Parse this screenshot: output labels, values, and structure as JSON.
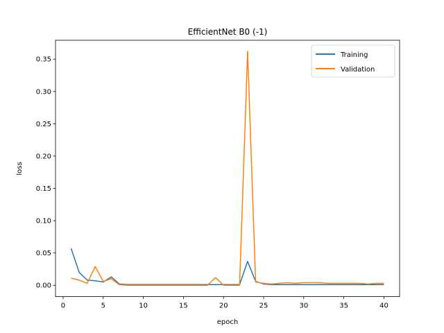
{
  "chart_data": {
    "type": "line",
    "title": "EfficientNet B0 (-1)",
    "xlabel": "epoch",
    "ylabel": "loss",
    "xlim": [
      -0.95,
      41.95
    ],
    "ylim": [
      -0.0176,
      0.3792
    ],
    "xticks": [
      0,
      5,
      10,
      15,
      20,
      25,
      30,
      35,
      40
    ],
    "yticks": [
      0.0,
      0.05,
      0.1,
      0.15,
      0.2,
      0.25,
      0.3,
      0.35
    ],
    "ytick_labels": [
      "0.00",
      "0.05",
      "0.10",
      "0.15",
      "0.20",
      "0.25",
      "0.30",
      "0.35"
    ],
    "grid": false,
    "legend_position": "top-right",
    "x": [
      1,
      2,
      3,
      4,
      5,
      6,
      7,
      8,
      9,
      10,
      11,
      12,
      13,
      14,
      15,
      16,
      17,
      18,
      19,
      20,
      21,
      22,
      23,
      24,
      25,
      26,
      27,
      28,
      29,
      30,
      31,
      32,
      33,
      34,
      35,
      36,
      37,
      38,
      39,
      40
    ],
    "series": [
      {
        "name": "Training",
        "color": "#1f77b4",
        "values": [
          0.057,
          0.02,
          0.008,
          0.007,
          0.005,
          0.013,
          0.002,
          0.001,
          0.001,
          0.001,
          0.001,
          0.001,
          0.001,
          0.001,
          0.001,
          0.001,
          0.001,
          0.001,
          0.001,
          0.001,
          0.001,
          0.001,
          0.037,
          0.006,
          0.002,
          0.001,
          0.001,
          0.001,
          0.001,
          0.001,
          0.001,
          0.001,
          0.001,
          0.001,
          0.001,
          0.001,
          0.001,
          0.001,
          0.001,
          0.001
        ]
      },
      {
        "name": "Validation",
        "color": "#ff7f0e",
        "values": [
          0.011,
          0.008,
          0.003,
          0.029,
          0.006,
          0.01,
          0.001,
          0.0,
          0.0,
          0.0,
          0.0,
          0.0,
          0.0,
          0.0,
          0.0,
          0.0,
          0.0,
          0.0,
          0.012,
          0.0,
          0.0,
          0.0,
          0.362,
          0.005,
          0.003,
          0.002,
          0.003,
          0.004,
          0.003,
          0.004,
          0.004,
          0.004,
          0.003,
          0.003,
          0.003,
          0.003,
          0.003,
          0.002,
          0.003,
          0.003
        ]
      }
    ]
  }
}
